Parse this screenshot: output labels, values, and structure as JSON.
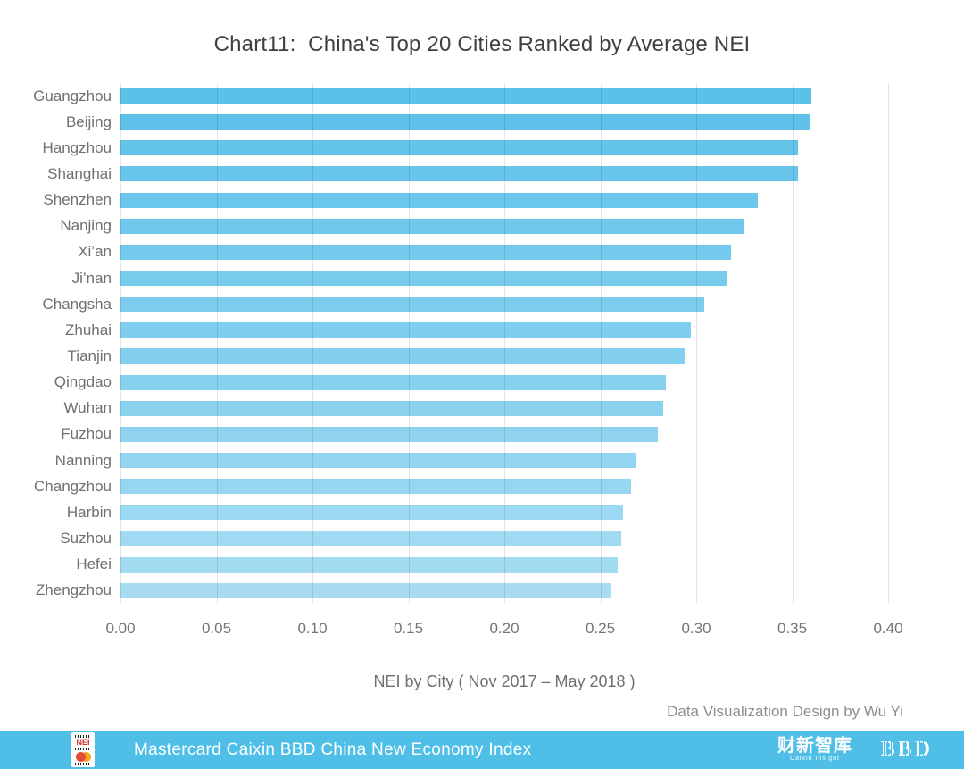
{
  "title": "Chart11:  China's Top 20 Cities Ranked by Average NEI",
  "chart_data": {
    "type": "bar",
    "orientation": "horizontal",
    "title": "Chart11:  China's Top 20 Cities Ranked by Average NEI",
    "xlabel": "NEI by City ( Nov 2017 – May 2018 )",
    "xlim": [
      0,
      0.4
    ],
    "xticks": [
      "0.00",
      "0.05",
      "0.10",
      "0.15",
      "0.20",
      "0.25",
      "0.30",
      "0.35",
      "0.40"
    ],
    "grid": true,
    "legend": "none",
    "categories": [
      "Guangzhou",
      "Beijing",
      "Hangzhou",
      "Shanghai",
      "Shenzhen",
      "Nanjing",
      "Xi’an",
      "Ji’nan",
      "Changsha",
      "Zhuhai",
      "Tianjin",
      "Qingdao",
      "Wuhan",
      "Fuzhou",
      "Nanning",
      "Changzhou",
      "Harbin",
      "Suzhou",
      "Hefei",
      "Zhengzhou"
    ],
    "values": [
      0.36,
      0.359,
      0.353,
      0.353,
      0.332,
      0.325,
      0.318,
      0.316,
      0.304,
      0.297,
      0.294,
      0.284,
      0.283,
      0.28,
      0.269,
      0.266,
      0.262,
      0.261,
      0.259,
      0.256
    ],
    "bar_color_start": "#5BC1E9",
    "bar_color_end": "#A7DCF3"
  },
  "credit": "Data Visualization Design by Wu Yi",
  "footer": {
    "title": "Mastercard Caixin BBD China New Economy Index",
    "background_color": "#4FBFE8",
    "nei_badge_text": "NEI",
    "caixin_logo_text": "财新智库",
    "caixin_logo_subtext": "Caixin Insight",
    "bbd_logo_text": "BBD"
  }
}
